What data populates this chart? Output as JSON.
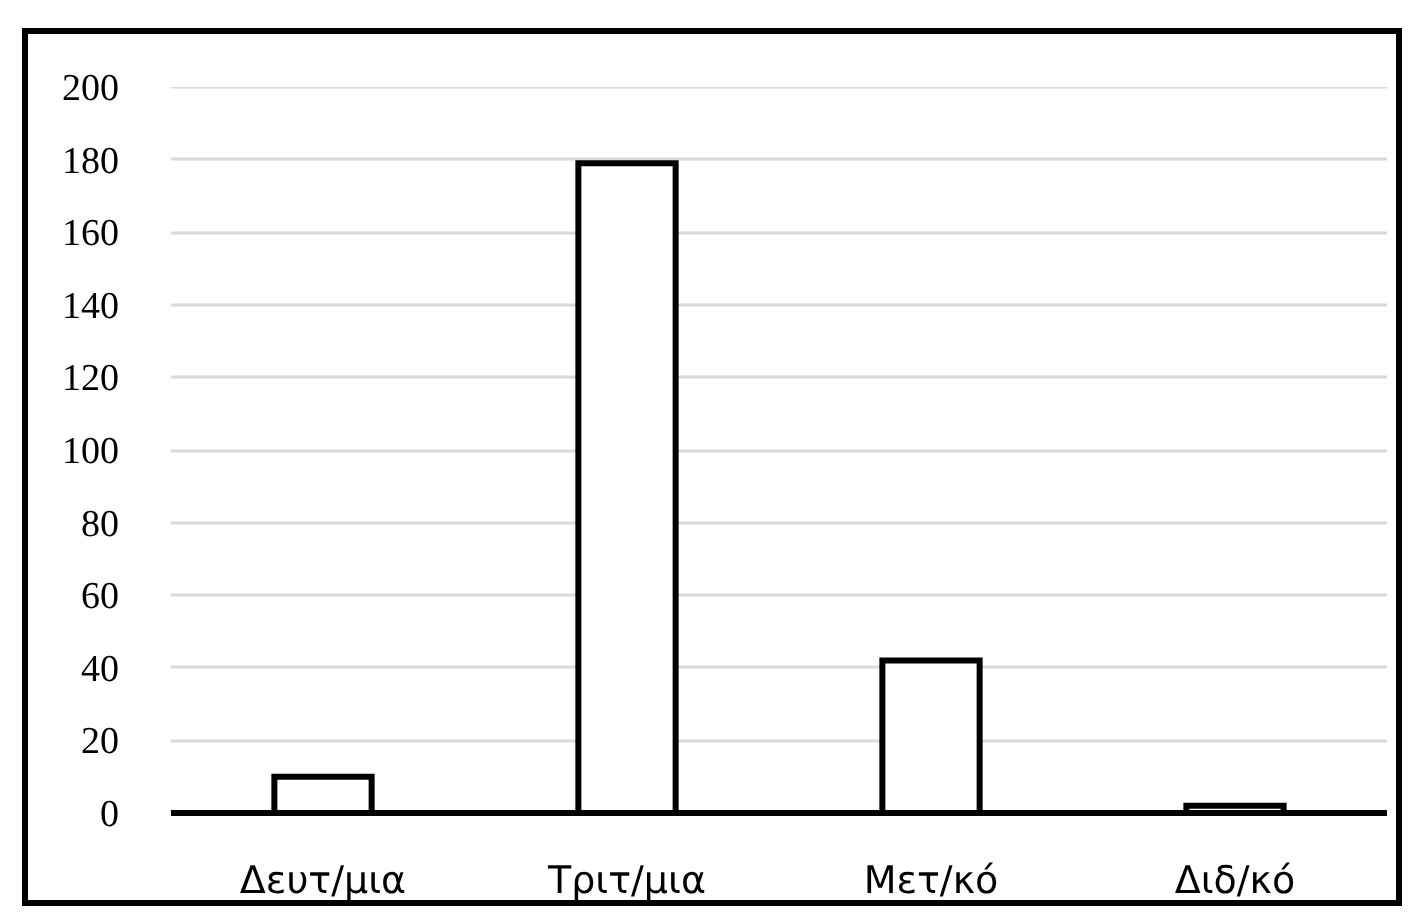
{
  "chart_data": {
    "type": "bar",
    "categories": [
      "Δευτ/μια",
      "Τριτ/μια",
      "Μετ/κό",
      "Διδ/κό"
    ],
    "values": [
      10,
      179,
      42,
      2
    ],
    "color": "#ffffff",
    "ylim": [
      0,
      200
    ],
    "yticks": [
      0,
      20,
      40,
      60,
      80,
      100,
      120,
      140,
      160,
      180,
      200
    ],
    "grid": "y"
  }
}
